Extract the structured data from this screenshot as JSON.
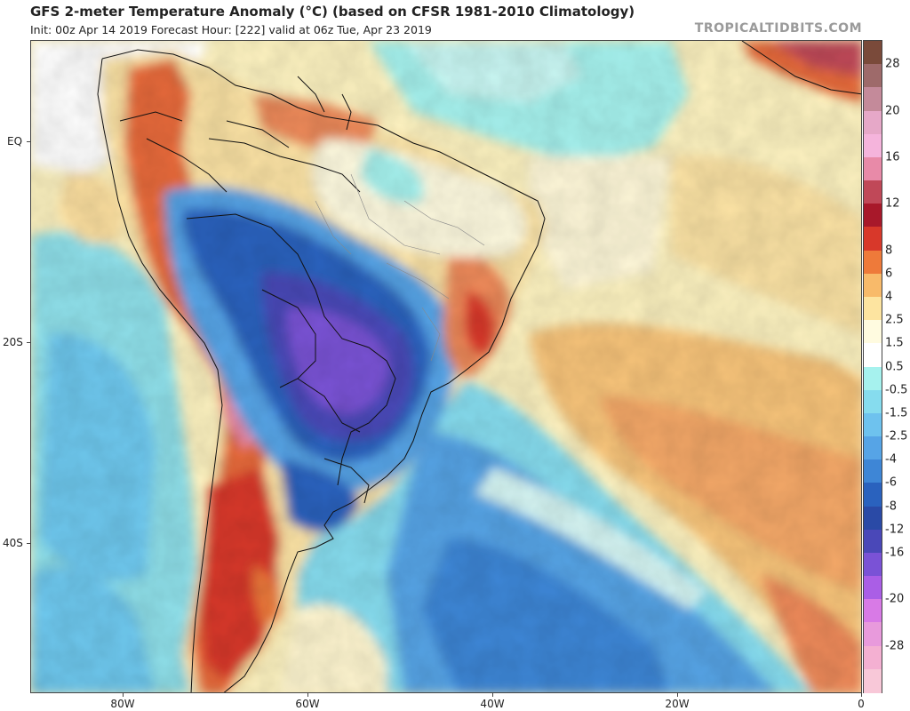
{
  "header": {
    "title": "GFS 2-meter Temperature Anomaly (°C) (based on CFSR 1981-2010 Climatology)",
    "subtitle": "Init: 00z Apr 14 2019   Forecast Hour: [222]   valid at 06z Tue, Apr 23 2019",
    "brand": "TROPICALTIDBITS.COM"
  },
  "map": {
    "lat_labels": [
      "EQ",
      "20S",
      "40S"
    ],
    "lon_labels": [
      "80W",
      "60W",
      "40W",
      "20W",
      "0"
    ]
  },
  "colorbar": {
    "labels": [
      "28",
      "20",
      "16",
      "12",
      "8",
      "6",
      "4",
      "2.5",
      "1.5",
      "0.5",
      "-0.5",
      "-1.5",
      "-2.5",
      "-4",
      "-6",
      "-8",
      "-12",
      "-16",
      "-20",
      "-28"
    ],
    "colors": [
      "#7a4a3a",
      "#9e6a6a",
      "#c48a9a",
      "#e6a8c8",
      "#f5b4dc",
      "#e88aa8",
      "#c04858",
      "#a8182a",
      "#d8382a",
      "#ee7a3a",
      "#f8ba6a",
      "#fde4a0",
      "#fffbe0",
      "#ffffff",
      "#a6f2ee",
      "#86dcee",
      "#6ec2ee",
      "#56a4e6",
      "#3e86d6",
      "#2a62be",
      "#2a4aa6",
      "#4a48b8",
      "#7a52d6",
      "#aa5ee6",
      "#d87ae6",
      "#e89adc",
      "#f4b0d2",
      "#f8c8d8"
    ]
  }
}
